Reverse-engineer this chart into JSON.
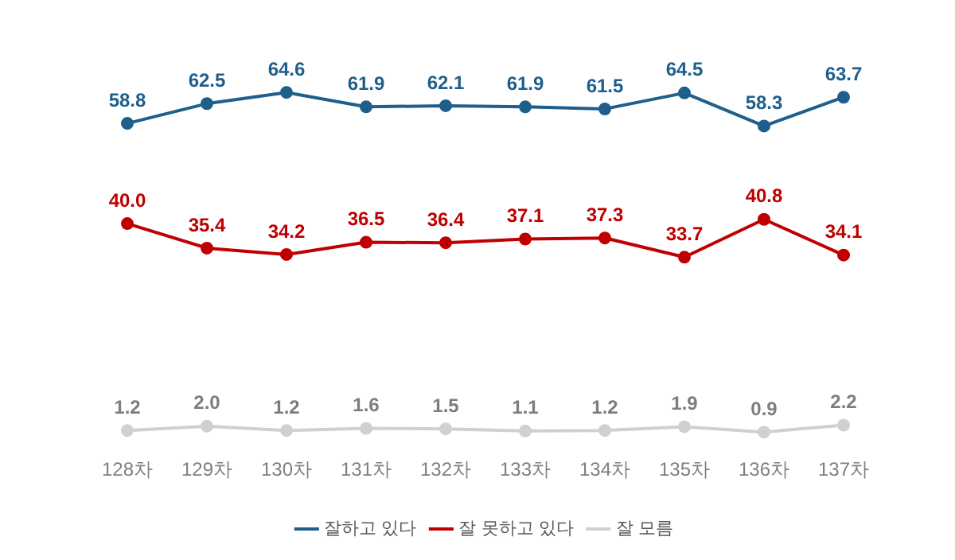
{
  "chart_data": {
    "type": "line",
    "categories": [
      "128차",
      "129차",
      "130차",
      "131차",
      "132차",
      "133차",
      "134차",
      "135차",
      "136차",
      "137차"
    ],
    "series": [
      {
        "name": "잘하고 있다",
        "color": "#1f5f8b",
        "values": [
          58.8,
          62.5,
          64.6,
          61.9,
          62.1,
          61.9,
          61.5,
          64.5,
          58.3,
          63.7
        ],
        "value_labels": [
          "58.8",
          "62.5",
          "64.6",
          "61.9",
          "62.1",
          "61.9",
          "61.5",
          "64.5",
          "58.3",
          "63.7"
        ]
      },
      {
        "name": "잘 못하고 있다",
        "color": "#c00000",
        "values": [
          40.0,
          35.4,
          34.2,
          36.5,
          36.4,
          37.1,
          37.3,
          33.7,
          40.8,
          34.1
        ],
        "value_labels": [
          "40.0",
          "35.4",
          "34.2",
          "36.5",
          "36.4",
          "37.1",
          "37.3",
          "33.7",
          "40.8",
          "34.1"
        ]
      },
      {
        "name": "잘 모름",
        "color": "#d0d0d0",
        "values": [
          1.2,
          2.0,
          1.2,
          1.6,
          1.5,
          1.1,
          1.2,
          1.9,
          0.9,
          2.2
        ],
        "value_labels": [
          "1.2",
          "2.0",
          "1.2",
          "1.6",
          "1.5",
          "1.1",
          "1.2",
          "1.9",
          "0.9",
          "2.2"
        ]
      }
    ],
    "legend": "bottom",
    "grid": false,
    "marker": "circle",
    "line_style": "solid"
  }
}
